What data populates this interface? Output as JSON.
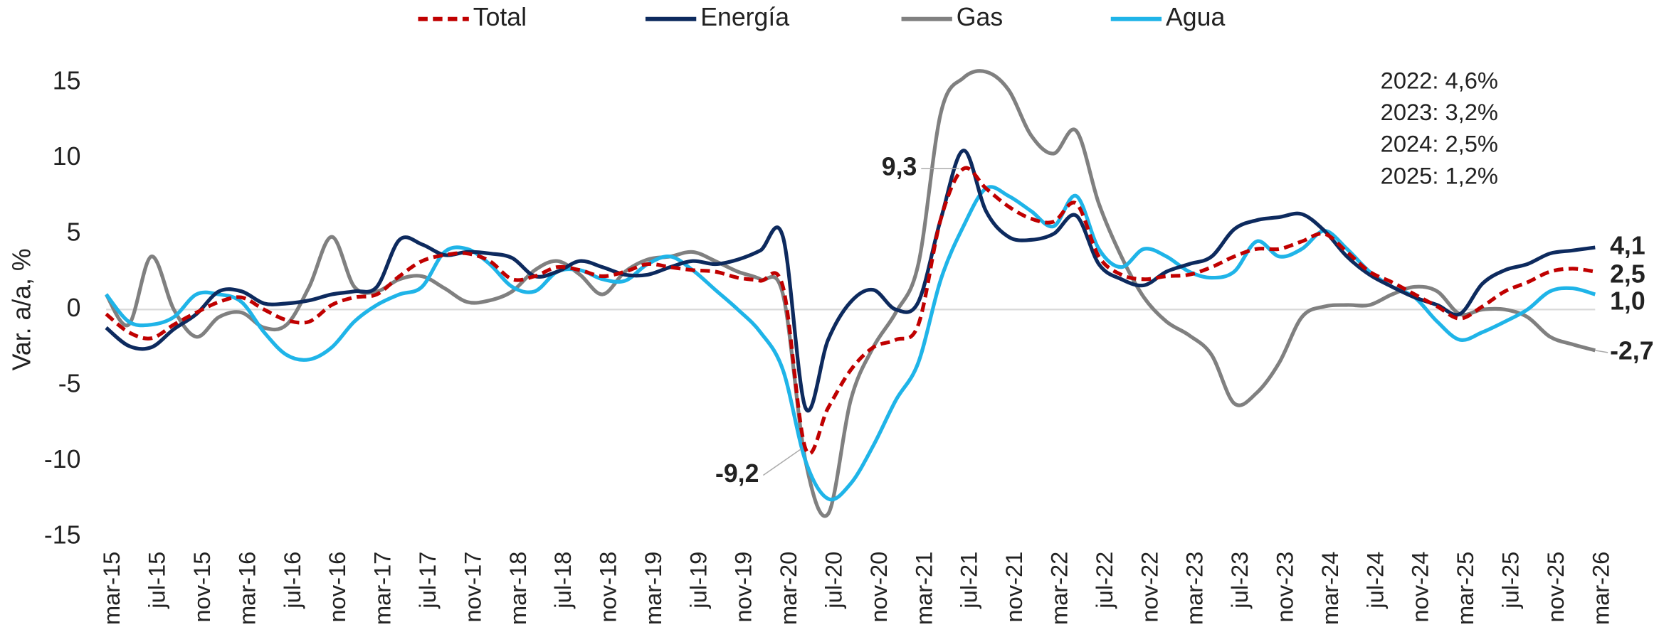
{
  "chart_data": {
    "type": "line",
    "y_label": "Var. a/a, %",
    "annotations": [
      "2022: 4,6%",
      "2023: 3,2%",
      "2024: 2,5%",
      "2025: 1,2%"
    ],
    "categories": [
      "mar-15",
      null,
      "jul-15",
      null,
      "nov-15",
      null,
      "mar-16",
      null,
      "jul-16",
      null,
      "nov-16",
      null,
      "mar-17",
      null,
      "jul-17",
      null,
      "nov-17",
      null,
      "mar-18",
      null,
      "jul-18",
      null,
      "nov-18",
      null,
      "mar-19",
      null,
      "jul-19",
      null,
      "nov-19",
      null,
      "mar-20",
      null,
      "jul-20",
      null,
      "nov-20",
      null,
      "mar-21",
      null,
      "jul-21",
      null,
      "nov-21",
      null,
      "mar-22",
      null,
      "jul-22",
      null,
      "nov-22",
      null,
      "mar-23",
      null,
      "jul-23",
      null,
      "nov-23",
      null,
      "mar-24",
      null,
      "jul-24",
      null,
      "nov-24",
      null,
      "mar-25",
      null,
      "jul-25",
      null,
      "nov-25",
      null,
      "mar-26"
    ],
    "ylim": [
      -15,
      15
    ],
    "yticks": [
      -15,
      -10,
      -5,
      0,
      5,
      10,
      15
    ],
    "grid": false,
    "series": [
      {
        "name": "Total",
        "color": "#c00000",
        "dashed": true,
        "values": [
          -0.3,
          -1.5,
          -1.9,
          -1.0,
          -0.2,
          0.5,
          0.8,
          0,
          -0.7,
          -0.8,
          0.3,
          0.8,
          1.0,
          2.2,
          3.2,
          3.6,
          3.7,
          3.2,
          2.0,
          2.2,
          2.8,
          2.6,
          2.2,
          2.5,
          3.0,
          2.8,
          2.6,
          2.5,
          2.1,
          1.9,
          1.5,
          -9.2,
          -6.5,
          -4.0,
          -2.5,
          -2.0,
          -1.0,
          6,
          9.3,
          8.0,
          6.8,
          6.0,
          5.8,
          7.0,
          3.5,
          2.3,
          2.0,
          2.2,
          2.3,
          2.8,
          3.5,
          4.0,
          4.0,
          4.5,
          5.0,
          3.8,
          2.5,
          1.8,
          1.0,
          0.2,
          -0.6,
          0.2,
          1.2,
          1.8,
          2.5,
          2.7,
          2.5
        ],
        "value_labels": [
          null,
          null,
          null,
          null,
          null,
          null,
          null,
          null,
          null,
          null,
          null,
          null,
          null,
          null,
          null,
          null,
          null,
          null,
          null,
          null,
          null,
          null,
          null,
          null,
          null,
          null,
          null,
          null,
          null,
          null,
          null,
          "-9,2",
          null,
          null,
          null,
          null,
          null,
          null,
          "9,3",
          null,
          null,
          null,
          null,
          null,
          null,
          null,
          null,
          null,
          null,
          null,
          null,
          null,
          null,
          null,
          null,
          null,
          null,
          null,
          null,
          null,
          null,
          null,
          null,
          null,
          null,
          null,
          "2,5"
        ]
      },
      {
        "name": "Energía",
        "color": "#0d2a5e",
        "values": [
          -1.2,
          -2.4,
          -2.5,
          -1.3,
          -0.3,
          1.2,
          1.2,
          0.4,
          0.4,
          0.6,
          1.0,
          1.2,
          1.5,
          4.6,
          4.3,
          3.6,
          3.8,
          3.7,
          3.4,
          2.2,
          2.5,
          3.2,
          2.8,
          2.3,
          2.3,
          2.8,
          3.2,
          3.0,
          3.3,
          3.9,
          4.8,
          -6.5,
          -2.0,
          0.5,
          1.3,
          0.0,
          0.5,
          6,
          10.5,
          6.5,
          4.8,
          4.6,
          5.0,
          6.2,
          3.0,
          2.0,
          1.6,
          2.5,
          3.0,
          3.5,
          5.3,
          5.9,
          6.1,
          6.3,
          5.2,
          3.5,
          2.3,
          1.5,
          0.8,
          0.3,
          -0.3,
          1.7,
          2.6,
          3.0,
          3.7,
          3.9,
          4.1
        ],
        "value_labels": [
          null,
          null,
          null,
          null,
          null,
          null,
          null,
          null,
          null,
          null,
          null,
          null,
          null,
          null,
          null,
          null,
          null,
          null,
          null,
          null,
          null,
          null,
          null,
          null,
          null,
          null,
          null,
          null,
          null,
          null,
          null,
          null,
          null,
          null,
          null,
          null,
          null,
          null,
          null,
          null,
          null,
          null,
          null,
          null,
          null,
          null,
          null,
          null,
          null,
          null,
          null,
          null,
          null,
          null,
          null,
          null,
          null,
          null,
          null,
          null,
          null,
          null,
          null,
          null,
          null,
          null,
          "4,1"
        ]
      },
      {
        "name": "Gas",
        "color": "#808080",
        "values": [
          1.0,
          -1.0,
          3.5,
          0,
          -1.8,
          -0.5,
          -0.2,
          -1.2,
          -1.0,
          1.5,
          4.8,
          1.5,
          1.2,
          2.0,
          2.2,
          1.4,
          0.5,
          0.6,
          1.2,
          2.6,
          3.2,
          2.3,
          1.0,
          2.5,
          3.3,
          3.5,
          3.8,
          3.2,
          2.5,
          2.0,
          1.0,
          -10,
          -13.5,
          -6,
          -2.5,
          -0.2,
          3.0,
          13,
          15.3,
          15.7,
          14.5,
          11.5,
          10.3,
          11.8,
          7.0,
          3.5,
          0.8,
          -0.8,
          -1.7,
          -3.0,
          -6.2,
          -5.5,
          -3.5,
          -0.5,
          0.2,
          0.3,
          0.3,
          1.0,
          1.5,
          1.2,
          -0.3,
          0.0,
          0.0,
          -0.5,
          -1.8,
          -2.3,
          -2.7
        ],
        "value_labels": [
          null,
          null,
          null,
          null,
          null,
          null,
          null,
          null,
          null,
          null,
          null,
          null,
          null,
          null,
          null,
          null,
          null,
          null,
          null,
          null,
          null,
          null,
          null,
          null,
          null,
          null,
          null,
          null,
          null,
          null,
          null,
          null,
          null,
          null,
          null,
          null,
          null,
          null,
          null,
          null,
          null,
          null,
          null,
          null,
          null,
          null,
          null,
          null,
          null,
          null,
          null,
          null,
          null,
          null,
          null,
          null,
          null,
          null,
          null,
          null,
          null,
          null,
          null,
          null,
          null,
          null,
          "-2,7"
        ]
      },
      {
        "name": "Agua",
        "color": "#1fb4e8",
        "values": [
          1.0,
          -0.8,
          -1.0,
          -0.5,
          1.0,
          1.0,
          0.5,
          -1.5,
          -3.0,
          -3.3,
          -2.5,
          -0.8,
          0.3,
          1.0,
          1.5,
          3.8,
          4.0,
          3.0,
          1.5,
          1.2,
          2.5,
          2.6,
          2.0,
          1.9,
          3.0,
          3.5,
          2.6,
          1.3,
          0,
          -1.5,
          -4.0,
          -10,
          -12.5,
          -11.5,
          -9.0,
          -6.0,
          -3.5,
          2,
          5.5,
          8.0,
          7.5,
          6.5,
          5.5,
          7.5,
          4.0,
          2.8,
          4.0,
          3.5,
          2.5,
          2.1,
          2.5,
          4.5,
          3.5,
          4.0,
          5.2,
          4.0,
          2.5,
          1.5,
          0.8,
          -0.8,
          -2.0,
          -1.5,
          -0.8,
          0.0,
          1.2,
          1.4,
          1.0
        ],
        "value_labels": [
          null,
          null,
          null,
          null,
          null,
          null,
          null,
          null,
          null,
          null,
          null,
          null,
          null,
          null,
          null,
          null,
          null,
          null,
          null,
          null,
          null,
          null,
          null,
          null,
          null,
          null,
          null,
          null,
          null,
          null,
          null,
          null,
          null,
          null,
          null,
          null,
          null,
          null,
          null,
          null,
          null,
          null,
          null,
          null,
          null,
          null,
          null,
          null,
          null,
          null,
          null,
          null,
          null,
          null,
          null,
          null,
          null,
          null,
          null,
          null,
          null,
          null,
          null,
          null,
          null,
          null,
          "1,0"
        ]
      }
    ]
  }
}
